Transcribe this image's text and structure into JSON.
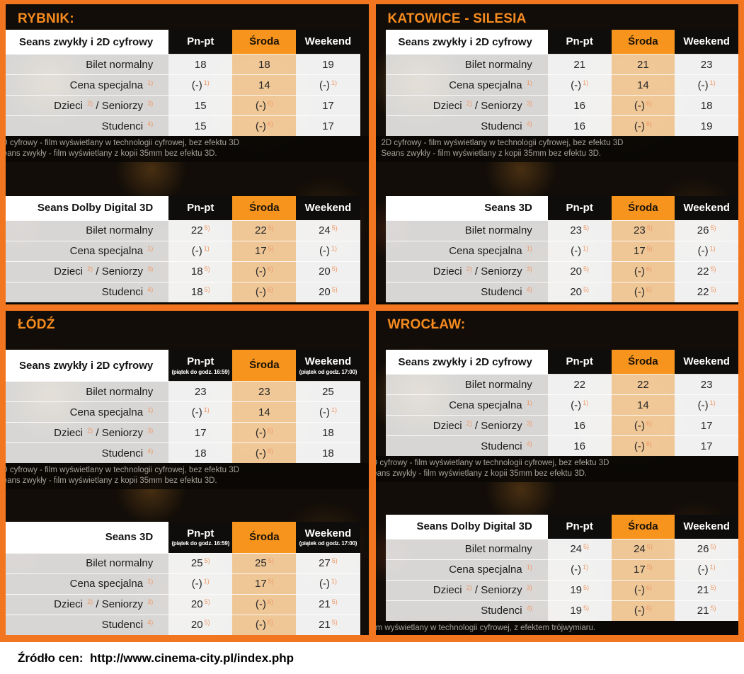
{
  "colors": {
    "frame_orange": "#F1761F",
    "header_orange": "#F7941D",
    "header_black": "#0F0D0B",
    "sroda_column_tint": "#F7CD9C",
    "footnote_marker": "#EE9865",
    "panel_title_orange": "#F68B1F"
  },
  "shared": {
    "columns": [
      {
        "label": "Pn-pt",
        "sub": "",
        "highlight": false
      },
      {
        "label": "Środa",
        "sub": "",
        "highlight": true
      },
      {
        "label": "Weekend",
        "sub": "",
        "highlight": false
      }
    ],
    "columns_lodz": [
      {
        "label": "Pn-pt",
        "sub": "(piątek do godz. 16:59)",
        "highlight": false
      },
      {
        "label": "Środa",
        "sub": "",
        "highlight": true
      },
      {
        "label": "Weekend",
        "sub": "(piątek od godz. 17:00)",
        "highlight": false
      }
    ],
    "row_labels": [
      [
        {
          "t": "Bilet normalny"
        }
      ],
      [
        {
          "t": "Cena specjalna "
        },
        {
          "s": "1)"
        }
      ],
      [
        {
          "t": "Dzieci "
        },
        {
          "s": "2)"
        },
        {
          "t": " / Seniorzy "
        },
        {
          "s": "3)"
        }
      ],
      [
        {
          "t": "Studenci "
        },
        {
          "s": "4)"
        }
      ]
    ],
    "footnotes_2d": [
      "2D cyfrowy - film wyświetlany w technologii cyfrowej, bez efektu 3D",
      "Seans zwykły - film wyświetlany z kopii 35mm bez efektu 3D."
    ],
    "footnote_3d": "Film wyświetlany w technologii cyfrowej, z efektem trójwymiaru."
  },
  "panels": [
    {
      "city": "Rybnik",
      "title": "RYBNIK:",
      "tables": [
        {
          "title": "Seans zwykły i 2D cyfrowy",
          "columns": "columns",
          "footnotes": "2d",
          "rows": [
            [
              [
                "18",
                ""
              ],
              [
                "18",
                ""
              ],
              [
                "19",
                ""
              ]
            ],
            [
              [
                "(-)",
                "1)"
              ],
              [
                "14",
                ""
              ],
              [
                "(-)",
                "1)"
              ]
            ],
            [
              [
                "15",
                ""
              ],
              [
                "(-)",
                "6)"
              ],
              [
                "17",
                ""
              ]
            ],
            [
              [
                "15",
                ""
              ],
              [
                "(-)",
                "6)"
              ],
              [
                "17",
                ""
              ]
            ]
          ]
        },
        {
          "title": "Seans Dolby Digital 3D",
          "columns": "columns",
          "footnotes": "3d",
          "rows": [
            [
              [
                "22",
                "5)"
              ],
              [
                "22",
                "5)"
              ],
              [
                "24",
                "5)"
              ]
            ],
            [
              [
                "(-)",
                "1)"
              ],
              [
                "17",
                "5)"
              ],
              [
                "(-)",
                "1)"
              ]
            ],
            [
              [
                "18",
                "5)"
              ],
              [
                "(-)",
                "6)"
              ],
              [
                "20",
                "5)"
              ]
            ],
            [
              [
                "18",
                "5)"
              ],
              [
                "(-)",
                "6)"
              ],
              [
                "20",
                "5)"
              ]
            ]
          ]
        }
      ]
    },
    {
      "city": "Katowice - Silesia",
      "title": "KATOWICE - SILESIA",
      "tables": [
        {
          "title": "Seans zwykły i 2D cyfrowy",
          "columns": "columns",
          "footnotes": "2d",
          "rows": [
            [
              [
                "21",
                ""
              ],
              [
                "21",
                ""
              ],
              [
                "23",
                ""
              ]
            ],
            [
              [
                "(-)",
                "1)"
              ],
              [
                "14",
                ""
              ],
              [
                "(-)",
                "1)"
              ]
            ],
            [
              [
                "16",
                ""
              ],
              [
                "(-)",
                "6)"
              ],
              [
                "18",
                ""
              ]
            ],
            [
              [
                "16",
                ""
              ],
              [
                "(-)",
                "6)"
              ],
              [
                "19",
                ""
              ]
            ]
          ]
        },
        {
          "title": "Seans 3D",
          "columns": "columns",
          "footnotes": "3d",
          "rows": [
            [
              [
                "23",
                "5)"
              ],
              [
                "23",
                "5)"
              ],
              [
                "26",
                "5)"
              ]
            ],
            [
              [
                "(-)",
                "1)"
              ],
              [
                "17",
                "5)"
              ],
              [
                "(-)",
                "1)"
              ]
            ],
            [
              [
                "20",
                "5)"
              ],
              [
                "(-)",
                "6)"
              ],
              [
                "22",
                "5)"
              ]
            ],
            [
              [
                "20",
                "5)"
              ],
              [
                "(-)",
                "6)"
              ],
              [
                "22",
                "5)"
              ]
            ]
          ]
        }
      ]
    },
    {
      "city": "Łódź",
      "title": "ŁÓDŹ",
      "tables": [
        {
          "title": "Seans zwykły i 2D cyfrowy",
          "columns": "columns_lodz",
          "footnotes": "2d",
          "rows": [
            [
              [
                "23",
                ""
              ],
              [
                "23",
                ""
              ],
              [
                "25",
                ""
              ]
            ],
            [
              [
                "(-)",
                "1)"
              ],
              [
                "14",
                ""
              ],
              [
                "(-)",
                "1)"
              ]
            ],
            [
              [
                "17",
                ""
              ],
              [
                "(-)",
                "6)"
              ],
              [
                "18",
                ""
              ]
            ],
            [
              [
                "18",
                ""
              ],
              [
                "(-)",
                "6)"
              ],
              [
                "18",
                ""
              ]
            ]
          ]
        },
        {
          "title": "Seans 3D",
          "columns": "columns_lodz",
          "footnotes": "3d",
          "rows": [
            [
              [
                "25",
                "5)"
              ],
              [
                "25",
                "5)"
              ],
              [
                "27",
                "5)"
              ]
            ],
            [
              [
                "(-)",
                "1)"
              ],
              [
                "17",
                "5)"
              ],
              [
                "(-)",
                "1)"
              ]
            ],
            [
              [
                "20",
                "5)"
              ],
              [
                "(-)",
                "6)"
              ],
              [
                "21",
                "5)"
              ]
            ],
            [
              [
                "20",
                "5)"
              ],
              [
                "(-)",
                "6)"
              ],
              [
                "21",
                "5)"
              ]
            ]
          ]
        }
      ]
    },
    {
      "city": "Wrocław",
      "title": "WROCŁAW:",
      "tables": [
        {
          "title": "Seans zwykły i 2D cyfrowy",
          "columns": "columns",
          "footnotes": "2d",
          "rows": [
            [
              [
                "22",
                ""
              ],
              [
                "22",
                ""
              ],
              [
                "23",
                ""
              ]
            ],
            [
              [
                "(-)",
                "1)"
              ],
              [
                "14",
                ""
              ],
              [
                "(-)",
                "1)"
              ]
            ],
            [
              [
                "16",
                ""
              ],
              [
                "(-)",
                "6)"
              ],
              [
                "17",
                ""
              ]
            ],
            [
              [
                "16",
                ""
              ],
              [
                "(-)",
                "6)"
              ],
              [
                "17",
                ""
              ]
            ]
          ]
        },
        {
          "title": "Seans Dolby Digital 3D",
          "columns": "columns",
          "footnotes": "3d",
          "rows": [
            [
              [
                "24",
                "5)"
              ],
              [
                "24",
                "5)"
              ],
              [
                "26",
                "5)"
              ]
            ],
            [
              [
                "(-)",
                "1)"
              ],
              [
                "17",
                "5)"
              ],
              [
                "(-)",
                "1)"
              ]
            ],
            [
              [
                "19",
                "5)"
              ],
              [
                "(-)",
                "6)"
              ],
              [
                "21",
                "5)"
              ]
            ],
            [
              [
                "19",
                "5)"
              ],
              [
                "(-)",
                "6)"
              ],
              [
                "21",
                "5)"
              ]
            ]
          ]
        }
      ]
    }
  ],
  "source_line": "Źródło cen:  http://www.cinema-city.pl/index.php"
}
